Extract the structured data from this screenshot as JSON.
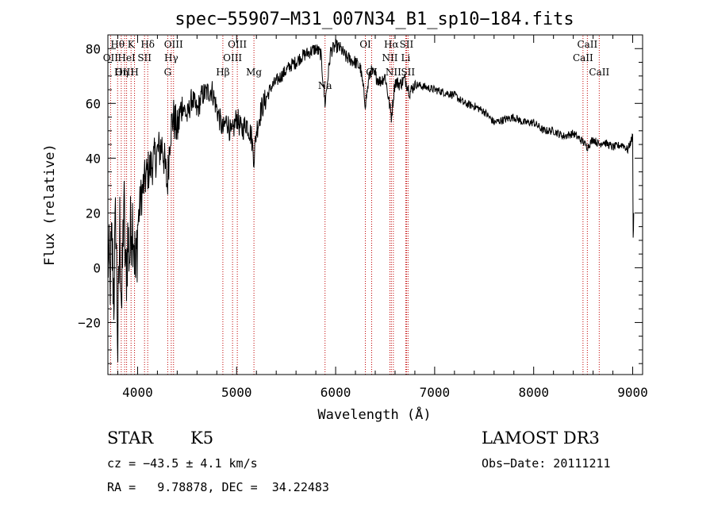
{
  "chart_data": {
    "type": "line",
    "title": "spec−55907−M31_007N34_B1_sp10−184.fits",
    "xlabel": "Wavelength (Å)",
    "ylabel": "Flux (relative)",
    "xlim": [
      3700,
      9100
    ],
    "ylim": [
      -39,
      85
    ],
    "xticks": [
      4000,
      5000,
      6000,
      7000,
      8000,
      9000
    ],
    "yticks": [
      -20,
      0,
      20,
      40,
      60,
      80
    ],
    "ytick_labels": [
      "−20",
      "0",
      "20",
      "40",
      "60",
      "80"
    ],
    "series": [
      {
        "name": "flux",
        "x": [
          3700,
          3720,
          3740,
          3760,
          3780,
          3800,
          3820,
          3840,
          3860,
          3880,
          3900,
          3920,
          3940,
          3960,
          3980,
          4000,
          4030,
          4060,
          4100,
          4150,
          4200,
          4250,
          4300,
          4330,
          4360,
          4400,
          4450,
          4500,
          4550,
          4600,
          4650,
          4700,
          4750,
          4800,
          4861,
          4900,
          4950,
          5000,
          5050,
          5100,
          5150,
          5175,
          5200,
          5250,
          5300,
          5350,
          5400,
          5450,
          5500,
          5550,
          5600,
          5650,
          5700,
          5750,
          5800,
          5850,
          5893,
          5950,
          6000,
          6050,
          6100,
          6150,
          6200,
          6250,
          6300,
          6350,
          6400,
          6450,
          6500,
          6563,
          6600,
          6650,
          6700,
          6750,
          6800,
          6900,
          7000,
          7100,
          7200,
          7300,
          7400,
          7500,
          7600,
          7700,
          7800,
          7900,
          8000,
          8100,
          8200,
          8300,
          8400,
          8498,
          8542,
          8600,
          8662,
          8700,
          8800,
          8900,
          8950,
          9000,
          9005,
          9010
        ],
        "values": [
          5,
          -5,
          8,
          -10,
          20,
          -30,
          15,
          -15,
          25,
          -5,
          10,
          5,
          20,
          15,
          -5,
          15,
          25,
          30,
          35,
          38,
          42,
          45,
          30,
          50,
          55,
          50,
          60,
          55,
          62,
          57,
          63,
          64,
          65,
          58,
          50,
          54,
          48,
          55,
          50,
          53,
          48,
          40,
          50,
          58,
          62,
          66,
          68,
          70,
          72,
          74,
          75,
          77,
          78,
          79,
          80,
          78,
          60,
          79,
          81,
          80,
          77,
          76,
          75,
          73,
          60,
          72,
          70,
          68,
          70,
          55,
          68,
          67,
          69,
          64,
          67,
          66,
          65,
          64,
          63,
          60,
          59,
          57,
          53,
          54,
          55,
          53,
          53,
          50,
          50,
          48,
          49,
          46,
          44,
          47,
          45,
          46,
          44,
          45,
          43,
          48,
          10,
          20
        ]
      }
    ],
    "lines": [
      {
        "label": "Hθ",
        "x": 3798,
        "row": 0
      },
      {
        "label": "OII",
        "x": 3727,
        "row": 1
      },
      {
        "label": "OIII",
        "x": 3869,
        "row": 2
      },
      {
        "label": "Hη",
        "x": 3835,
        "row": 2
      },
      {
        "label": "HeI",
        "x": 3889,
        "row": 1
      },
      {
        "label": "K",
        "x": 3934,
        "row": 0
      },
      {
        "label": "H",
        "x": 3969,
        "row": 2
      },
      {
        "label": "SII",
        "x": 4070,
        "row": 1
      },
      {
        "label": "Hδ",
        "x": 4102,
        "row": 0
      },
      {
        "label": "G",
        "x": 4304,
        "row": 2
      },
      {
        "label": "OIII",
        "x": 4363,
        "row": 0
      },
      {
        "label": "Hγ",
        "x": 4340,
        "row": 1
      },
      {
        "label": "Hβ",
        "x": 4861,
        "row": 2
      },
      {
        "label": "OIII",
        "x": 4959,
        "row": 1
      },
      {
        "label": "OIII",
        "x": 5007,
        "row": 0
      },
      {
        "label": "Mg",
        "x": 5175,
        "row": 2
      },
      {
        "label": "Na",
        "x": 5893,
        "row": 3
      },
      {
        "label": "OI",
        "x": 6300,
        "row": 0
      },
      {
        "label": "OI",
        "x": 6364,
        "row": 2
      },
      {
        "label": "Hα",
        "x": 6563,
        "row": 0
      },
      {
        "label": "NII",
        "x": 6548,
        "row": 1
      },
      {
        "label": "NII",
        "x": 6583,
        "row": 2
      },
      {
        "label": "SII",
        "x": 6716,
        "row": 0
      },
      {
        "label": "Li",
        "x": 6708,
        "row": 1
      },
      {
        "label": "SII",
        "x": 6731,
        "row": 2
      },
      {
        "label": "CaII",
        "x": 8542,
        "row": 0
      },
      {
        "label": "CaII",
        "x": 8498,
        "row": 1
      },
      {
        "label": "CaII",
        "x": 8662,
        "row": 2
      }
    ]
  },
  "info": {
    "object_class": "STAR",
    "subclass": "K5",
    "survey": "LAMOST DR3",
    "cz": "cz = −43.5 ± 4.1 km/s",
    "obs_date": "Obs−Date: 20111211",
    "coords": "RA =   9.78878, DEC =  34.22483"
  },
  "colors": {
    "spectrum": "#000000",
    "line_marker": "#c00000",
    "axes": "#000000"
  }
}
